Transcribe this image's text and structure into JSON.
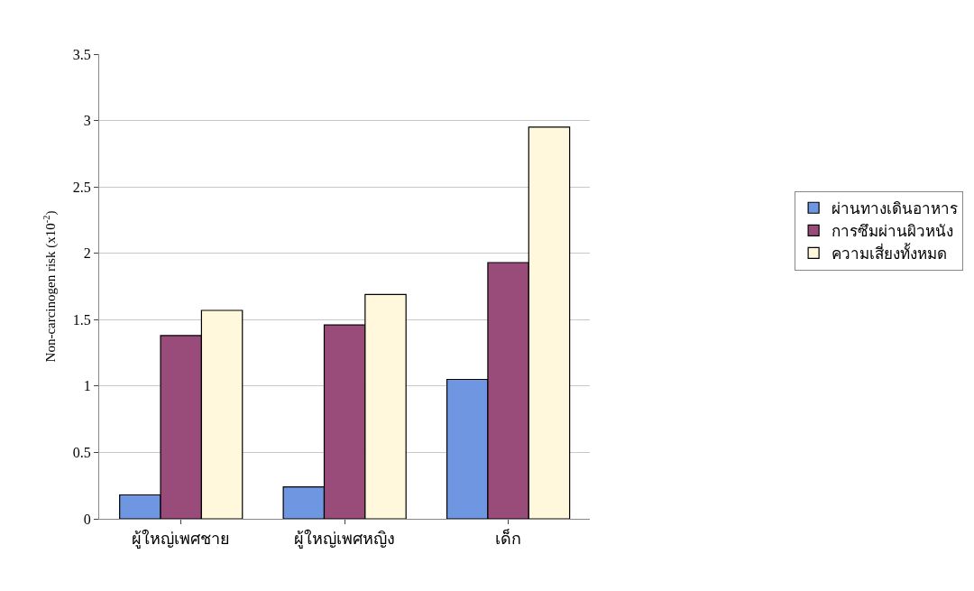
{
  "chart_data": {
    "type": "bar",
    "ylabel": "Non-carcinogen risk (x10$^{-2}$)",
    "categories": [
      "ผู้ใหญ่เพศชาย",
      "ผู้ใหญ่เพศหญิง",
      "เด็ก"
    ],
    "series": [
      {
        "name": "ผ่านทางเดินอาหาร",
        "color": "#6f96e0",
        "values": [
          0.18,
          0.24,
          1.05
        ]
      },
      {
        "name": "การซึมผ่านผิวหนัง",
        "color": "#994c7a",
        "values": [
          1.38,
          1.46,
          1.93
        ]
      },
      {
        "name": "ความเสี่ยงทั้งหมด",
        "color": "#fff8dc",
        "values": [
          1.57,
          1.69,
          2.95
        ]
      }
    ],
    "ylim": [
      0,
      3.5
    ],
    "yticks": [
      0,
      0.5,
      1,
      1.5,
      2,
      2.5,
      3,
      3.5
    ],
    "grid": "y",
    "legend": "right"
  }
}
